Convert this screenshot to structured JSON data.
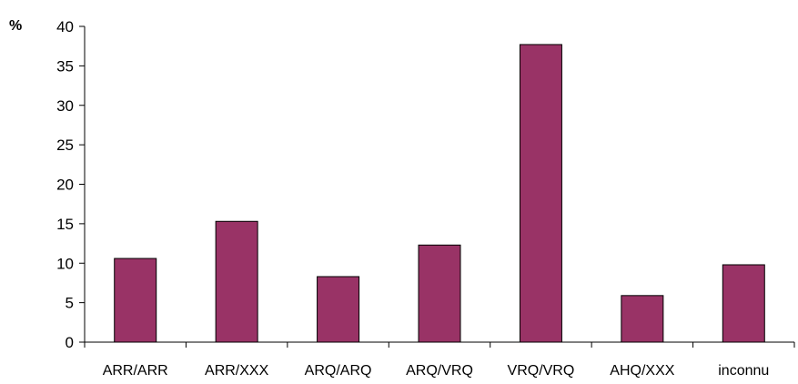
{
  "chart_data": {
    "type": "bar",
    "ylabel": "%",
    "categories": [
      "ARR/ARR",
      "ARR/XXX",
      "ARQ/ARQ",
      "ARQ/VRQ",
      "VRQ/VRQ",
      "AHQ/XXX",
      "inconnu"
    ],
    "values": [
      10.6,
      15.3,
      8.3,
      12.3,
      37.7,
      5.9,
      9.8
    ],
    "ylim": [
      0,
      40
    ],
    "yticks": [
      "0",
      "5",
      "10",
      "15",
      "20",
      "25",
      "30",
      "35",
      "40"
    ],
    "grid": false,
    "legend": "none",
    "colors": {
      "bar": "#993366",
      "bar_stroke": "#000000",
      "axis": "#000000"
    }
  }
}
